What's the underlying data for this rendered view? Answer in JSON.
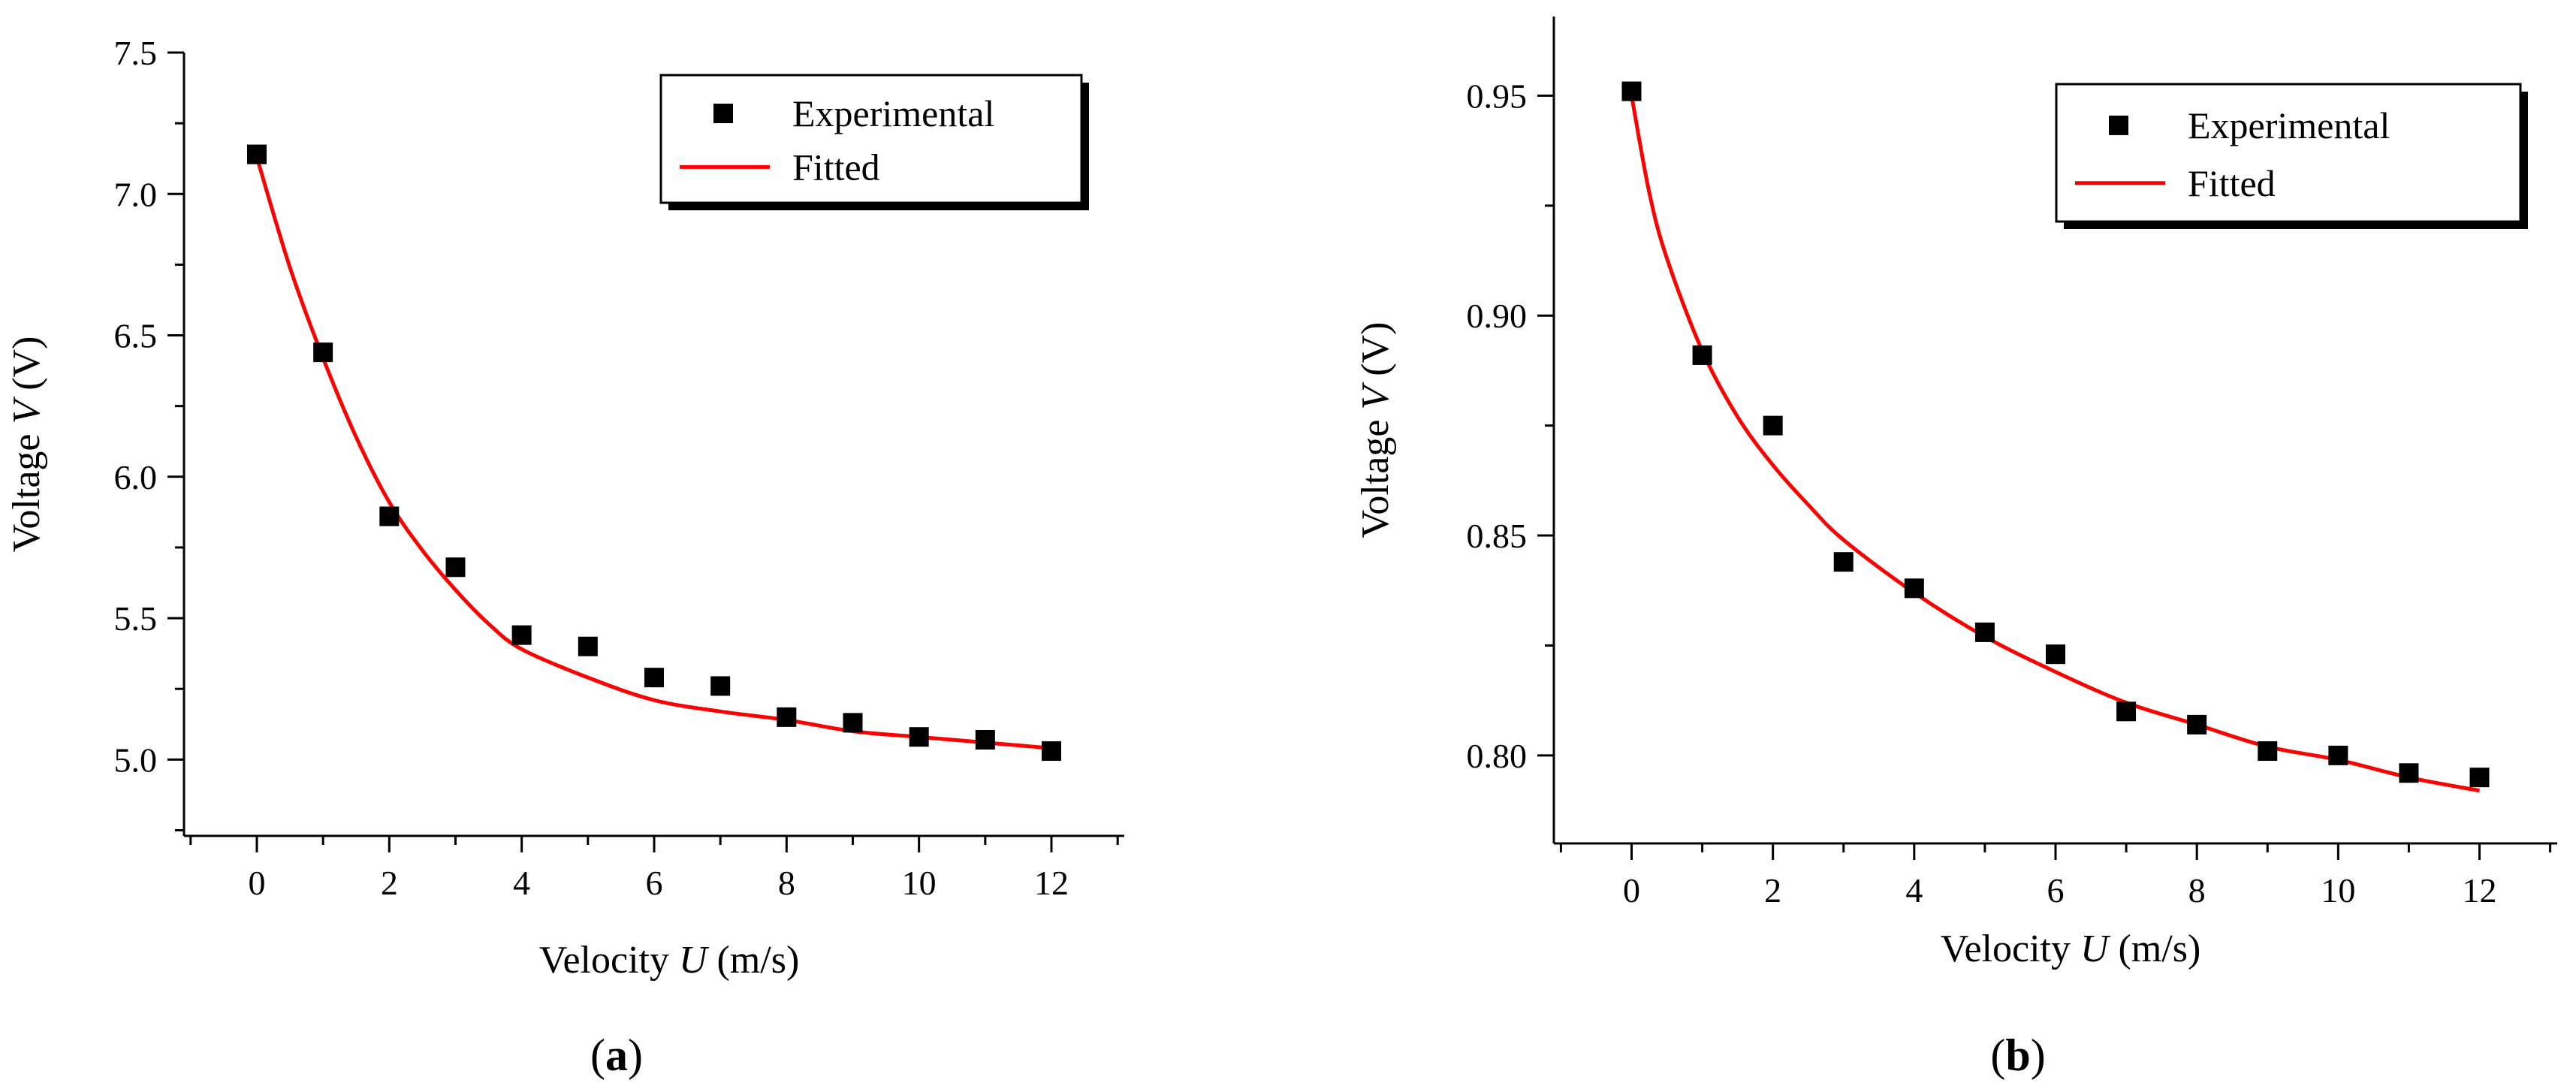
{
  "chart_data": [
    {
      "type": "scatter",
      "panel_label": [
        "(",
        "a",
        ")"
      ],
      "xlabel": {
        "prefix": "Velocity ",
        "var": "U",
        "suffix": " (m/s)"
      },
      "ylabel": {
        "prefix": "Voltage ",
        "var": "V",
        "suffix": " (V)"
      },
      "xlim": [
        -1.1,
        13.1
      ],
      "ylim": [
        4.73,
        7.5
      ],
      "x_ticks": [
        0,
        2,
        4,
        6,
        8,
        10,
        12
      ],
      "x_tick_labels": [
        "0",
        "2",
        "4",
        "6",
        "8",
        "10",
        "12"
      ],
      "y_ticks": [
        5.0,
        5.5,
        6.0,
        6.5,
        7.0,
        7.5
      ],
      "y_tick_labels": [
        "5.0",
        "5.5",
        "6.0",
        "6.5",
        "7.0",
        "7.5"
      ],
      "grid": false,
      "legend_position": "top-right",
      "series": [
        {
          "name": "Experimental",
          "kind": "markers",
          "marker": "square",
          "color": "#000000",
          "x": [
            0,
            1,
            2,
            3,
            4,
            5,
            6,
            7,
            8,
            9,
            10,
            11,
            12
          ],
          "y": [
            7.14,
            6.44,
            5.86,
            5.68,
            5.44,
            5.4,
            5.29,
            5.26,
            5.15,
            5.13,
            5.08,
            5.07,
            5.03
          ]
        },
        {
          "name": "Fitted",
          "kind": "line",
          "color": "#ff0000",
          "x": [
            0,
            0.5,
            1,
            1.5,
            2,
            2.5,
            3,
            3.5,
            4,
            5,
            6,
            7,
            8,
            9,
            10,
            11,
            12
          ],
          "y": [
            7.13,
            6.74,
            6.42,
            6.14,
            5.91,
            5.74,
            5.6,
            5.48,
            5.39,
            5.29,
            5.21,
            5.17,
            5.14,
            5.1,
            5.08,
            5.06,
            5.04
          ]
        }
      ]
    },
    {
      "type": "scatter",
      "panel_label": [
        "(",
        "b",
        ")"
      ],
      "xlabel": {
        "prefix": "Velocity ",
        "var": "U",
        "suffix": " (m/s)"
      },
      "ylabel": {
        "prefix": "Voltage ",
        "var": "V",
        "suffix": " (V)"
      },
      "xlim": [
        -1.1,
        13.1
      ],
      "ylim": [
        0.78,
        0.968
      ],
      "x_ticks": [
        0,
        2,
        4,
        6,
        8,
        10,
        12
      ],
      "x_tick_labels": [
        "0",
        "2",
        "4",
        "6",
        "8",
        "10",
        "12"
      ],
      "y_ticks": [
        0.8,
        0.85,
        0.9,
        0.95
      ],
      "y_tick_labels": [
        "0.80",
        "0.85",
        "0.90",
        "0.95"
      ],
      "grid": false,
      "legend_position": "top-right",
      "series": [
        {
          "name": "Experimental",
          "kind": "markers",
          "marker": "square",
          "color": "#000000",
          "x": [
            0,
            1,
            2,
            3,
            4,
            5,
            6,
            7,
            8,
            9,
            10,
            11,
            12
          ],
          "y": [
            0.951,
            0.891,
            0.875,
            0.844,
            0.838,
            0.828,
            0.823,
            0.81,
            0.807,
            0.801,
            0.8,
            0.796,
            0.795
          ]
        },
        {
          "name": "Fitted",
          "kind": "line",
          "color": "#ff0000",
          "x": [
            0,
            0.25,
            0.5,
            1,
            1.5,
            2,
            2.5,
            3,
            4,
            5,
            6,
            7,
            8,
            9,
            10,
            11,
            12
          ],
          "y": [
            0.95,
            0.928,
            0.913,
            0.892,
            0.877,
            0.866,
            0.857,
            0.849,
            0.837,
            0.827,
            0.819,
            0.812,
            0.807,
            0.802,
            0.799,
            0.795,
            0.792
          ]
        }
      ]
    }
  ]
}
